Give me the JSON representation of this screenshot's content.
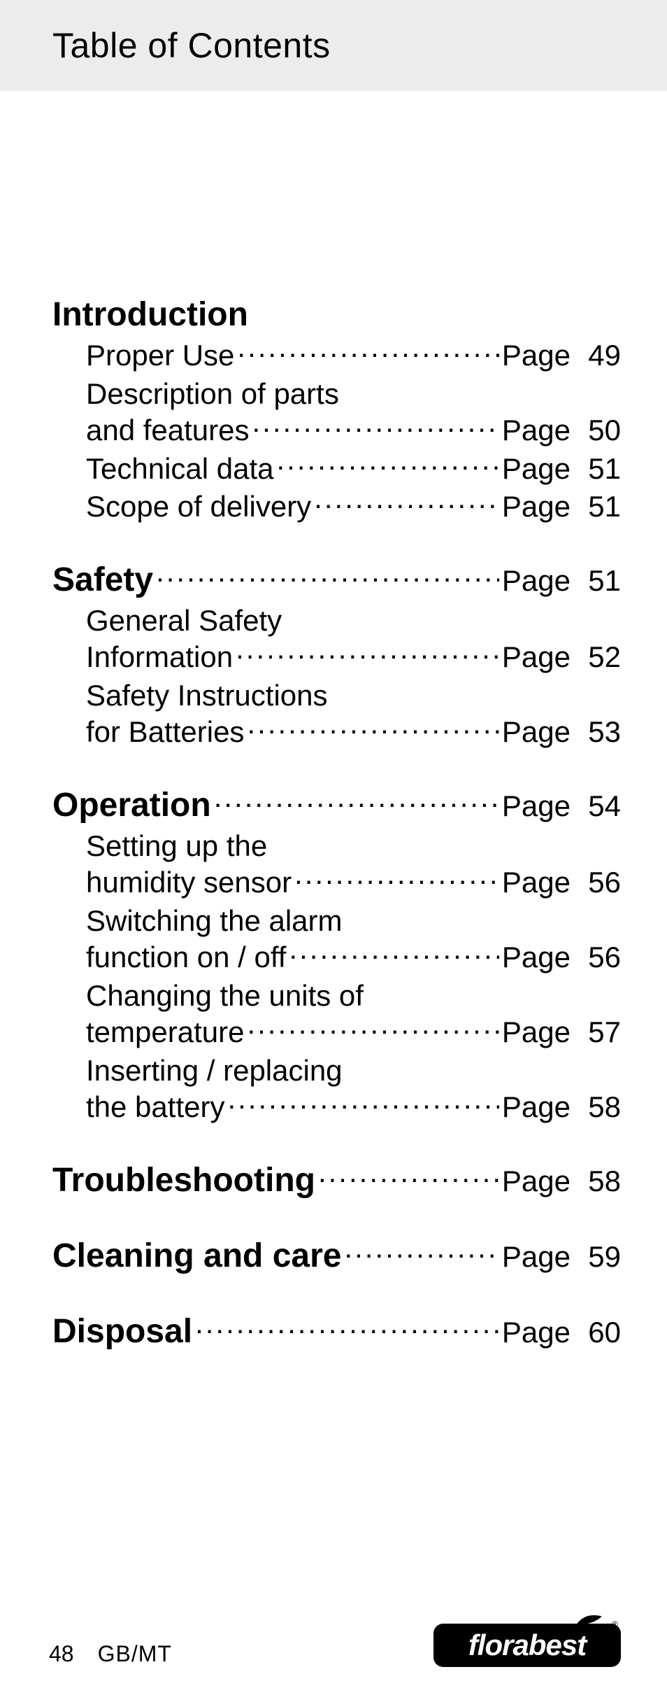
{
  "header": {
    "title": "Table of Contents"
  },
  "page_label": "Page",
  "sections": [
    {
      "title": "Introduction",
      "title_has_page": false,
      "page": null,
      "items": [
        {
          "lines": [
            "Proper Use"
          ],
          "page": "49"
        },
        {
          "lines": [
            "Description of parts",
            "and features"
          ],
          "page": "50"
        },
        {
          "lines": [
            "Technical data"
          ],
          "page": "51"
        },
        {
          "lines": [
            "Scope of delivery"
          ],
          "page": "51"
        }
      ]
    },
    {
      "title": "Safety",
      "title_has_page": true,
      "page": "51",
      "items": [
        {
          "lines": [
            "General Safety",
            "Information"
          ],
          "page": "52"
        },
        {
          "lines": [
            "Safety Instructions",
            "for Batteries"
          ],
          "page": "53"
        }
      ]
    },
    {
      "title": "Operation",
      "title_has_page": true,
      "page": "54",
      "items": [
        {
          "lines": [
            "Setting up the",
            "humidity sensor"
          ],
          "page": "56"
        },
        {
          "lines": [
            "Switching the alarm",
            "function on / off"
          ],
          "page": "56"
        },
        {
          "lines": [
            "Changing the units of",
            "temperature"
          ],
          "page": "57"
        },
        {
          "lines": [
            "Inserting / replacing",
            "the battery"
          ],
          "page": "58"
        }
      ]
    },
    {
      "title": "Troubleshooting",
      "title_has_page": true,
      "page": "58",
      "items": []
    },
    {
      "title": "Cleaning and care",
      "title_has_page": true,
      "page": "59",
      "items": []
    },
    {
      "title": "Disposal",
      "title_has_page": true,
      "page": "60",
      "items": []
    }
  ],
  "footer": {
    "page_number": "48",
    "region": "GB/MT",
    "logo_text": "florabest"
  },
  "colors": {
    "header_bg": "#ececec",
    "page_bg": "#ffffff",
    "text": "#000000",
    "logo_bg": "#000000",
    "logo_text": "#ffffff"
  },
  "typography": {
    "header_title_size": 50,
    "section_title_size": 48,
    "section_title_weight": 800,
    "sub_title_size": 42,
    "page_label_size": 42,
    "footer_size": 32,
    "logo_text_size": 42
  }
}
